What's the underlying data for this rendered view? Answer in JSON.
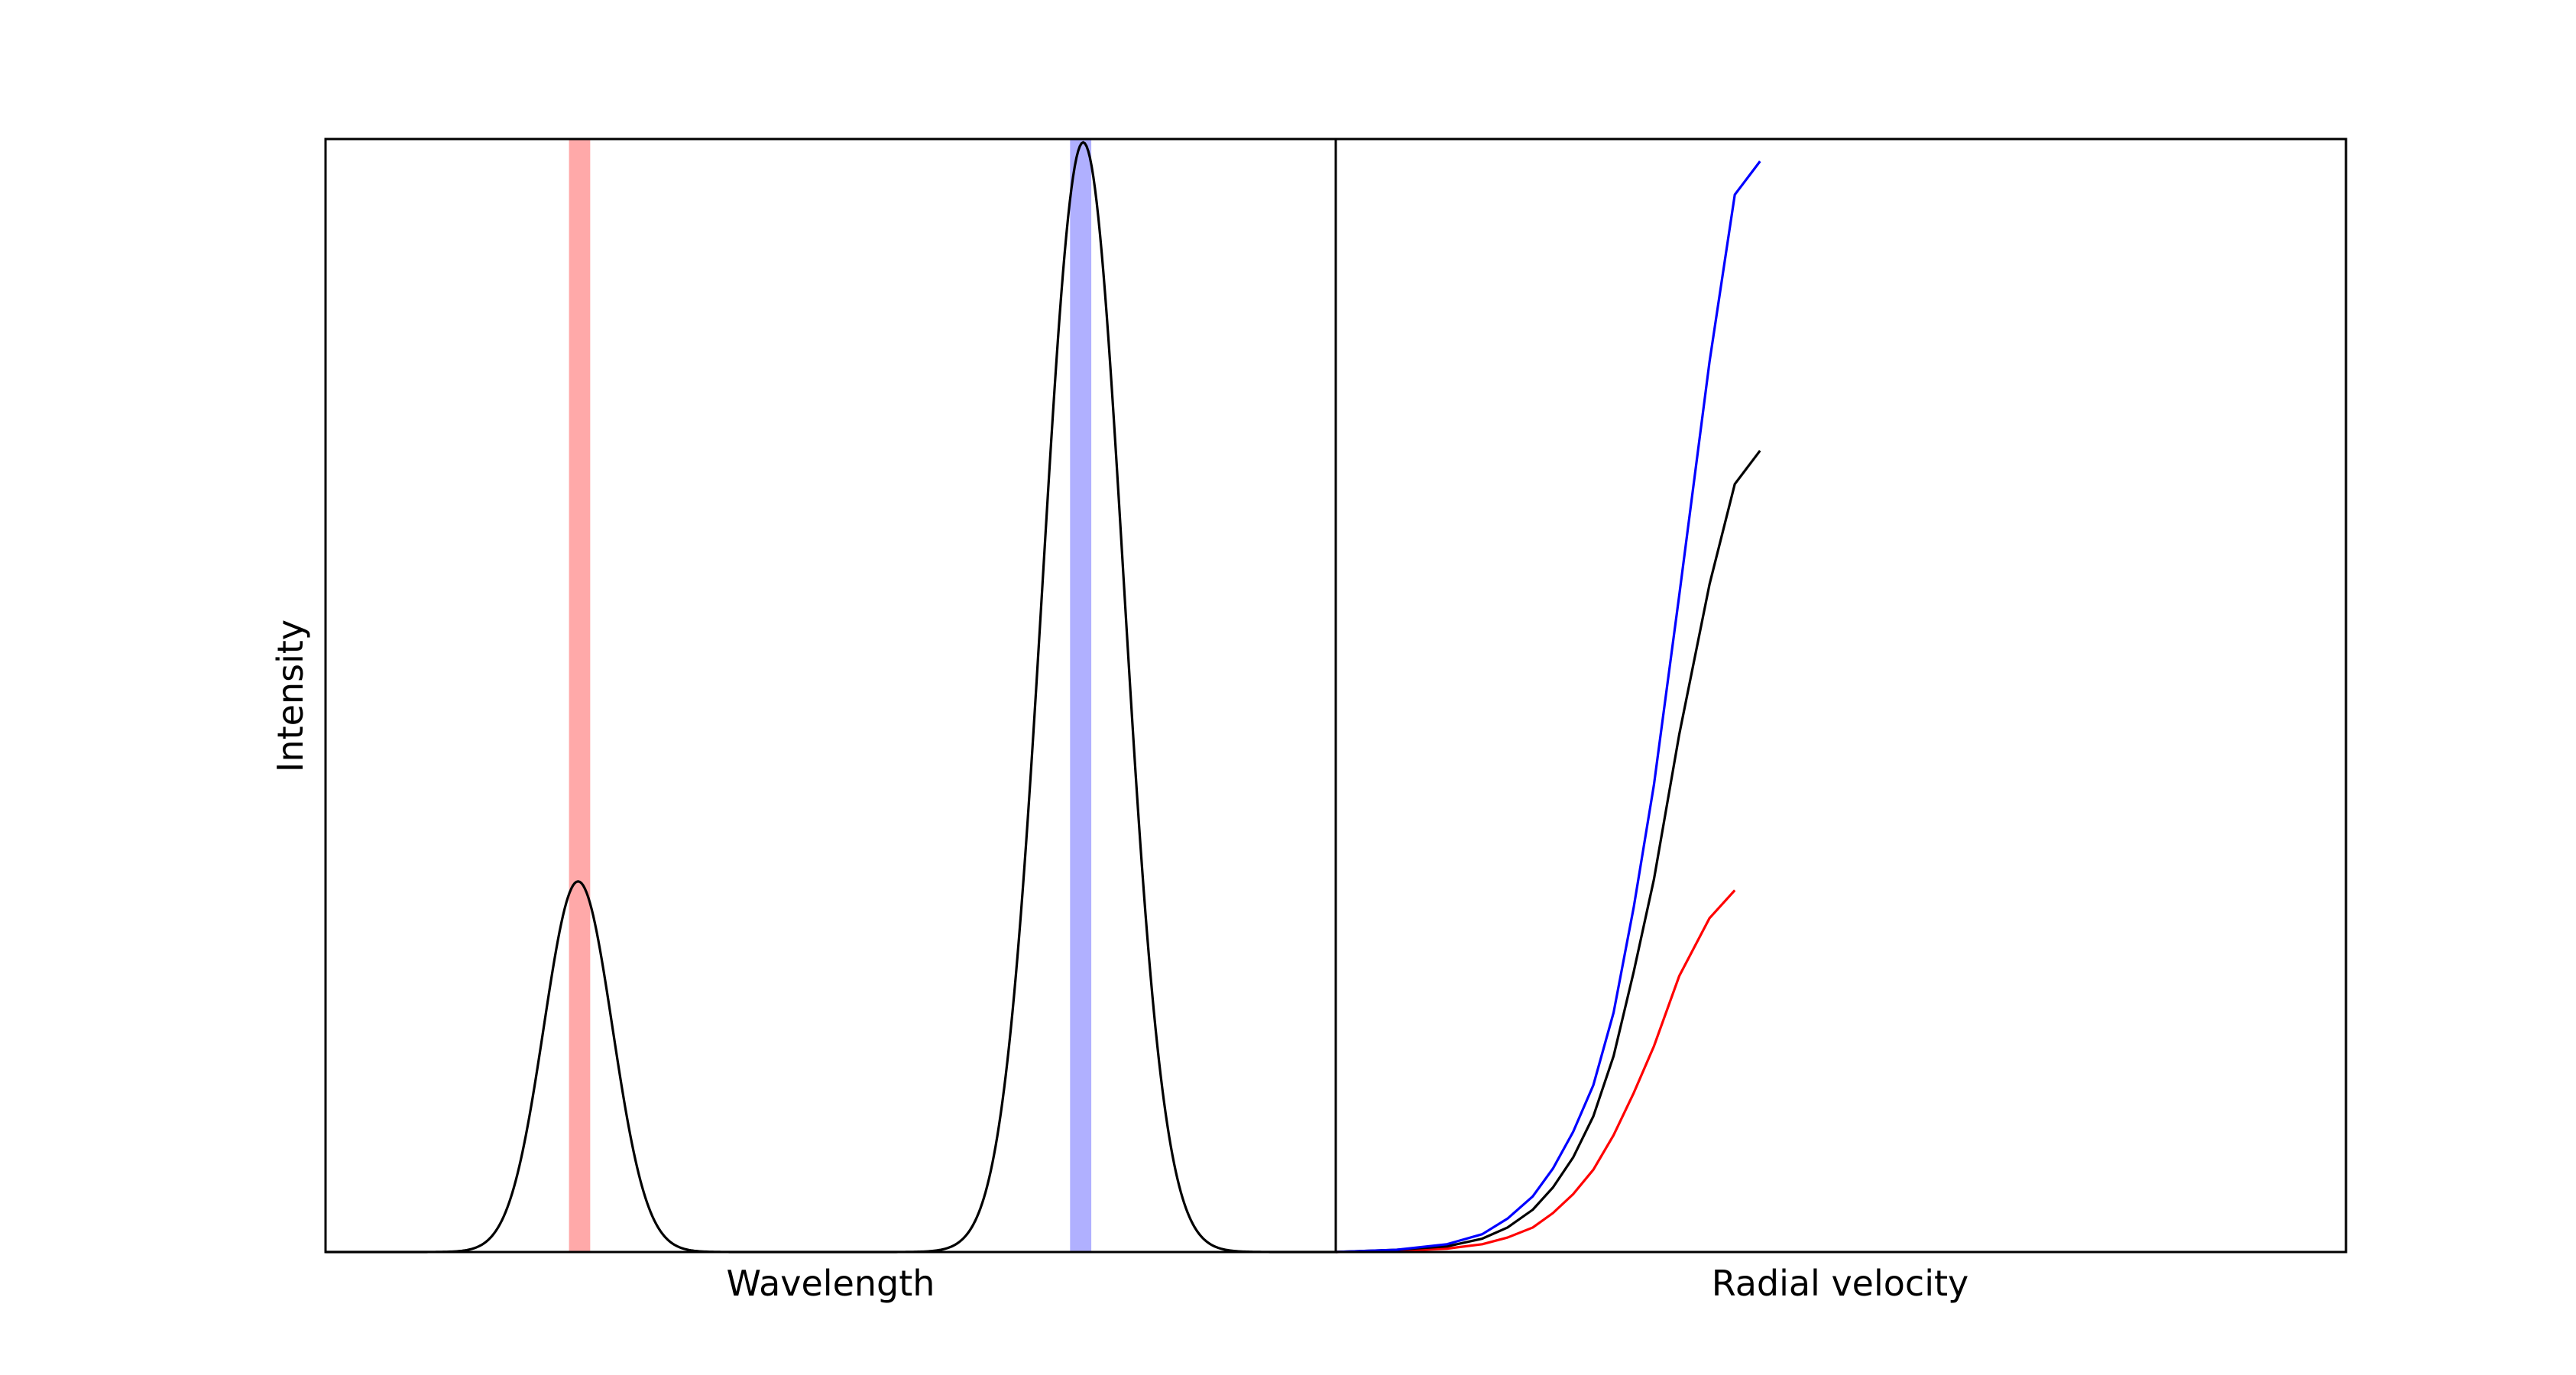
{
  "chart_data": [
    {
      "type": "line",
      "panel": "left",
      "title": "",
      "xlabel": "Wavelength",
      "ylabel": "Intensity",
      "xlim": [
        0,
        1
      ],
      "ylim": [
        0,
        1
      ],
      "ticks_visible": false,
      "grid": false,
      "series": [
        {
          "name": "spectrum",
          "color": "#000000",
          "components": [
            {
              "center": 0.25,
              "amplitude": 0.333,
              "sigma": 0.034
            },
            {
              "center": 0.75,
              "amplitude": 0.997,
              "sigma": 0.04
            }
          ]
        }
      ],
      "highlight_bands": [
        {
          "name": "red-band",
          "x0": 0.241,
          "x1": 0.262,
          "color": "#ff7070",
          "opacity": 0.6
        },
        {
          "name": "blue-band",
          "x0": 0.737,
          "x1": 0.758,
          "color": "#7070ff",
          "opacity": 0.55
        }
      ]
    },
    {
      "type": "line",
      "panel": "right",
      "title": "",
      "xlabel": "Radial velocity",
      "ylabel": "",
      "xlim": [
        0,
        1
      ],
      "ylim": [
        0,
        1
      ],
      "ticks_visible": false,
      "grid": false,
      "x": [
        0.0,
        0.06,
        0.11,
        0.145,
        0.17,
        0.195,
        0.215,
        0.235,
        0.255,
        0.275,
        0.295,
        0.315,
        0.34,
        0.37,
        0.395,
        0.42,
        0.445,
        0.455,
        0.48
      ],
      "series": [
        {
          "name": "blue",
          "color": "#0000ff",
          "values": [
            0.0,
            0.002,
            0.007,
            0.016,
            0.03,
            0.05,
            0.075,
            0.108,
            0.15,
            0.215,
            0.31,
            0.42,
            0.59,
            0.8,
            0.95,
            0.98,
            0.98,
            0.98,
            0.98
          ]
        },
        {
          "name": "black",
          "color": "#000000",
          "values": [
            0.0,
            0.002,
            0.005,
            0.012,
            0.022,
            0.038,
            0.058,
            0.085,
            0.122,
            0.176,
            0.252,
            0.335,
            0.465,
            0.6,
            0.69,
            0.72,
            0.72,
            0.72,
            0.72
          ]
        },
        {
          "name": "red",
          "color": "#ff0000",
          "values": [
            0.0,
            0.001,
            0.003,
            0.007,
            0.013,
            0.022,
            0.035,
            0.052,
            0.074,
            0.105,
            0.143,
            0.185,
            0.248,
            0.3,
            0.325,
            0.325,
            0.325,
            0.325,
            0.325
          ]
        }
      ]
    }
  ]
}
